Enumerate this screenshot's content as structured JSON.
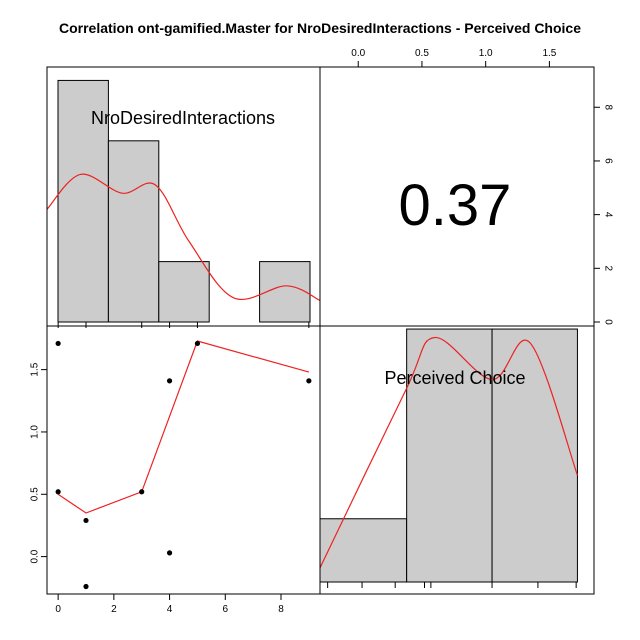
{
  "chart_data": {
    "type": "scatterplot-matrix",
    "title": "Correlation ont-gamified.Master for NroDesiredInteractions - Perceived Choice",
    "variables": [
      "NroDesiredInteractions",
      "Perceived Choice"
    ],
    "correlation": "0.37",
    "panels": {
      "hist_x": {
        "type": "bar",
        "label": "NroDesiredInteractions",
        "bins": [
          {
            "from": 0,
            "to": 1.8,
            "value": 9
          },
          {
            "from": 1.8,
            "to": 3.6,
            "value": 6.75
          },
          {
            "from": 3.6,
            "to": 5.4,
            "value": 2.25
          },
          {
            "from": 5.4,
            "to": 7.2,
            "value": 0
          },
          {
            "from": 7.2,
            "to": 9.0,
            "value": 2.25
          }
        ],
        "density_curve": [
          [
            -0.4,
            4.2
          ],
          [
            0.8,
            5.5
          ],
          [
            2.3,
            4.8
          ],
          [
            3.5,
            5.1
          ],
          [
            4.7,
            3.0
          ],
          [
            6.3,
            0.9
          ],
          [
            8.2,
            1.35
          ],
          [
            9.4,
            0.8
          ]
        ],
        "rug": [
          0,
          1,
          3,
          4,
          5,
          9
        ],
        "counts_axis": {
          "ticks": [
            0,
            2,
            4,
            6,
            8
          ],
          "ylim": [
            0,
            9.5
          ]
        }
      },
      "hist_y": {
        "type": "bar",
        "label": "Perceived Choice",
        "bins": [
          {
            "from": -0.3,
            "to": 0.38,
            "value": 2.25
          },
          {
            "from": 0.38,
            "to": 1.05,
            "value": 9
          },
          {
            "from": 1.05,
            "to": 1.72,
            "value": 9
          }
        ],
        "density_curve": [
          [
            -0.3,
            0.5
          ],
          [
            0.37,
            6.8
          ],
          [
            0.6,
            8.7
          ],
          [
            1.05,
            7.2
          ],
          [
            1.35,
            8.5
          ],
          [
            1.72,
            3.8
          ]
        ],
        "rug": [
          -0.24,
          0.03,
          0.29,
          0.52,
          0.57,
          1.05,
          1.41,
          1.71
        ]
      },
      "scatter": {
        "type": "scatter",
        "x": [
          0,
          0,
          1,
          1,
          3,
          4,
          4,
          5,
          9
        ],
        "y": [
          1.71,
          0.52,
          0.29,
          -0.24,
          0.52,
          1.41,
          0.03,
          1.71,
          1.41
        ],
        "smooth": [
          [
            0,
            0.5
          ],
          [
            1,
            0.35
          ],
          [
            3,
            0.52
          ],
          [
            5,
            1.73
          ],
          [
            9,
            1.48
          ]
        ]
      }
    },
    "axes": {
      "bottom": {
        "ticks": [
          "0",
          "2",
          "4",
          "6",
          "8"
        ],
        "values": [
          0,
          2,
          4,
          6,
          8
        ],
        "xlim": [
          -0.4,
          9.4
        ]
      },
      "left": {
        "ticks": [
          "0.0",
          "0.5",
          "1.0",
          "1.5"
        ],
        "values": [
          0,
          0.5,
          1.0,
          1.5
        ],
        "ylim": [
          -0.3,
          1.85
        ]
      },
      "top": {
        "ticks": [
          "0.0",
          "0.5",
          "1.0",
          "1.5"
        ],
        "values": [
          0,
          0.5,
          1.0,
          1.5
        ],
        "xlim": [
          -0.3,
          1.85
        ]
      },
      "right": {
        "ticks": [
          "0",
          "2",
          "4",
          "6",
          "8"
        ],
        "values": [
          0,
          2,
          4,
          6,
          8
        ]
      }
    },
    "colors": {
      "bar_fill": "#cccccc",
      "curve": "#ee2222",
      "points": "#000000"
    }
  }
}
